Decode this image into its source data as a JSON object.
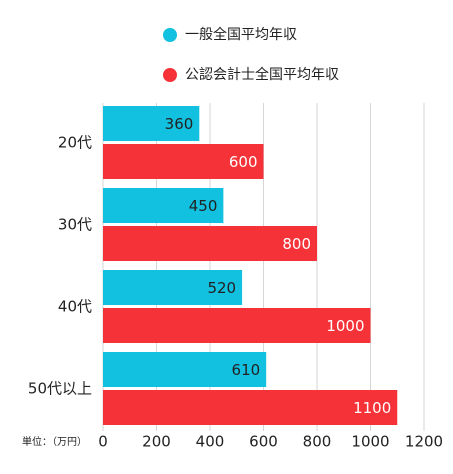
{
  "chart_data": {
    "type": "hbar",
    "categories": [
      "20代",
      "30代",
      "40代",
      "50代以上"
    ],
    "series": [
      {
        "name": "一般全国平均年収",
        "color": "#12c0df",
        "values": [
          360,
          450,
          520,
          610
        ]
      },
      {
        "name": "公認会計士全国平均年収",
        "color": "#f53238",
        "values": [
          600,
          800,
          1000,
          1100
        ]
      }
    ],
    "xlim": [
      0,
      1200
    ],
    "xticks": [
      0,
      200,
      400,
      600,
      800,
      1000,
      1200
    ],
    "grid": true,
    "unit_label": "単位：（万円）"
  }
}
